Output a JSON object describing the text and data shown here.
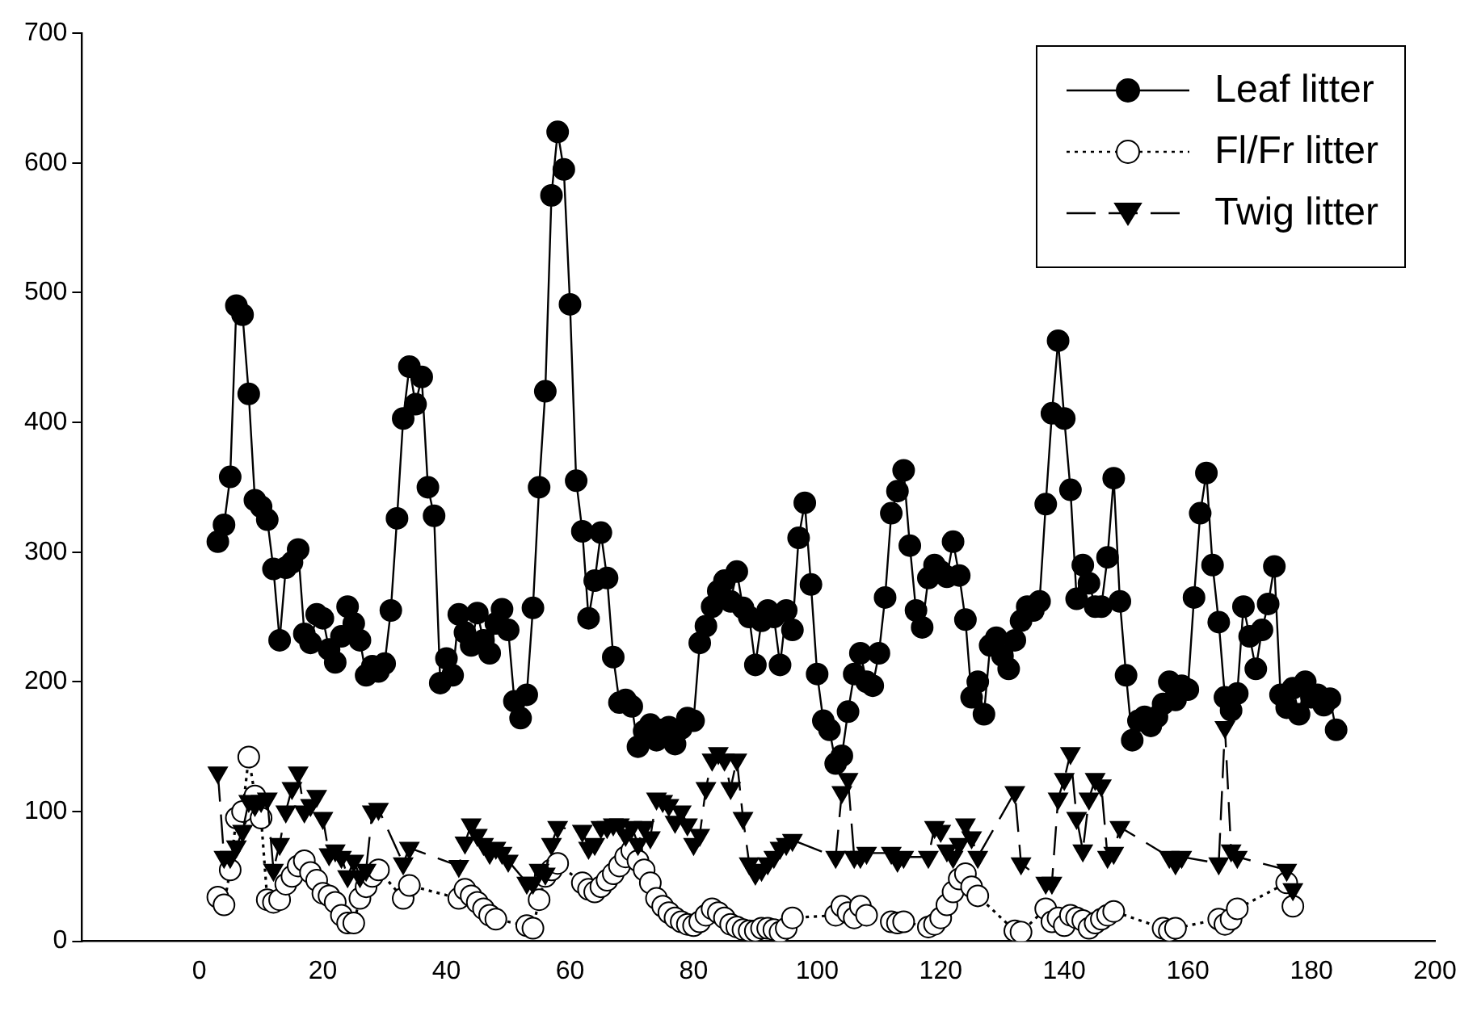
{
  "chart_data": {
    "type": "line",
    "xlim": [
      -19,
      200
    ],
    "xticks": [
      0,
      20,
      40,
      60,
      80,
      100,
      120,
      140,
      160,
      180,
      200
    ],
    "ylim": [
      0,
      700
    ],
    "yticks": [
      0,
      100,
      200,
      300,
      400,
      500,
      600,
      700
    ],
    "grid": false,
    "legend": "top right",
    "series": [
      {
        "name": "Leaf litter",
        "color": "#000000",
        "marker": "circle",
        "line_style": "solid",
        "x": [
          3,
          4,
          5,
          6,
          7,
          8,
          9,
          10,
          11,
          12,
          13,
          14,
          15,
          16,
          17,
          18,
          19,
          20,
          21,
          22,
          23,
          24,
          25,
          26,
          27,
          28,
          29,
          30,
          31,
          32,
          33,
          34,
          35,
          36,
          37,
          38,
          39,
          40,
          41,
          42,
          43,
          44,
          45,
          46,
          47,
          48,
          49,
          50,
          51,
          52,
          53,
          54,
          55,
          56,
          57,
          58,
          59,
          60,
          61,
          62,
          63,
          64,
          65,
          66,
          67,
          68,
          69,
          70,
          71,
          72,
          73,
          74,
          75,
          76,
          77,
          78,
          79,
          80,
          81,
          82,
          83,
          84,
          85,
          86,
          87,
          88,
          89,
          90,
          91,
          92,
          93,
          94,
          95,
          96,
          97,
          98,
          99,
          100,
          101,
          102,
          103,
          104,
          105,
          106,
          107,
          108,
          109,
          110,
          111,
          112,
          113,
          114,
          115,
          116,
          117,
          118,
          119,
          120,
          121,
          122,
          123,
          124,
          125,
          126,
          127,
          128,
          129,
          130,
          131,
          132,
          133,
          134,
          135,
          136,
          137,
          138,
          139,
          140,
          141,
          142,
          143,
          144,
          145,
          146,
          147,
          148,
          149,
          150,
          151,
          152,
          153,
          154,
          155,
          156,
          157,
          158,
          159,
          160,
          161,
          162,
          163,
          164,
          165,
          166,
          167,
          168,
          169,
          170,
          171,
          172,
          173,
          174,
          175,
          176,
          177,
          178,
          179,
          180,
          181,
          182,
          183,
          184
        ],
        "values": [
          308,
          321,
          358,
          490,
          483,
          422,
          340,
          335,
          325,
          287,
          232,
          288,
          292,
          302,
          237,
          230,
          252,
          249,
          225,
          215,
          235,
          258,
          245,
          232,
          205,
          212,
          208,
          214,
          255,
          326,
          403,
          443,
          414,
          435,
          350,
          328,
          199,
          218,
          205,
          252,
          238,
          228,
          253,
          232,
          222,
          245,
          256,
          240,
          185,
          172,
          190,
          257,
          350,
          424,
          575,
          624,
          595,
          491,
          355,
          316,
          249,
          278,
          315,
          280,
          219,
          184,
          186,
          181,
          150,
          162,
          167,
          155,
          163,
          165,
          152,
          164,
          172,
          170,
          230,
          243,
          258,
          270,
          278,
          262,
          285,
          257,
          250,
          213,
          247,
          255,
          250,
          213,
          255,
          240,
          311,
          338,
          275,
          206,
          170,
          163,
          137,
          143,
          177,
          206,
          222,
          200,
          197,
          222,
          265,
          330,
          347,
          363,
          305,
          255,
          242,
          280,
          290,
          285,
          281,
          308,
          282,
          248,
          188,
          200,
          175,
          228,
          234,
          220,
          210,
          232,
          247,
          258,
          255,
          262,
          337,
          407,
          463,
          403,
          348,
          264,
          290,
          276,
          258,
          258,
          296,
          357,
          262,
          205,
          155,
          170,
          173,
          166,
          173,
          183,
          200,
          186,
          197,
          194,
          265,
          330,
          361,
          290,
          246,
          188,
          178,
          191,
          258,
          235,
          210,
          240,
          260,
          289,
          190,
          180,
          195,
          175,
          200,
          188,
          190,
          182,
          187,
          163
        ]
      },
      {
        "name": "Fl/Fr litter",
        "color": "#000000",
        "colors": [
          "#ffffff",
          "#ffffff",
          "#ffffff",
          "#ffffff",
          "#ffffff",
          "#ffffff",
          "#ffffff",
          "#ffffff",
          "#ffffff",
          "#ffffff",
          "#ffffff",
          "#ffffff",
          "#ffffff",
          "#ffffff",
          "#ffffff",
          "#ffffff",
          "#ffffff",
          "#ffffff",
          "#ffffff",
          "#ffffff",
          "#ffffff",
          "#ffffff",
          "#ffffff",
          "#ffffff",
          "#ffffff",
          "#ffffff",
          "#ffffff",
          "#ffffff",
          "#ffffff",
          "#ffffff",
          "#ffffff",
          "#ffffff",
          "#ffffff",
          "#ffffff",
          "#ffffff",
          "#ffffff",
          "#ffffff",
          "#ffffff",
          "#ffffff",
          "#ffffff",
          "#ffffff",
          "#ffffff",
          "#ffffff",
          "#ffffff",
          "#ffffff",
          "#ffffff",
          "#ffffff",
          "#ffffff",
          "#ffffff",
          "#ffffff",
          "#ffffff",
          "#ffffff",
          "#ffffff",
          "#ffffff",
          "#ffffff",
          "#ffffff",
          "#ffffff",
          "#ffffff",
          "#ffffff",
          "#ffffff",
          "#ffffff",
          "#ffffff",
          "#ffffff",
          "#ffffff",
          "#ffffff",
          "#ffffff",
          "#ffffff",
          "#ffffff",
          "#ffffff",
          "#ffffff",
          "#ffffff",
          "#ffffff",
          "#ffffff",
          "#ffffff",
          "#ffffff",
          "#ffffff",
          "#ffffff",
          "#ffffff",
          "#ffffff",
          "#ffffff",
          "#ffffff",
          "#ffffff",
          "#ffffff",
          "#ffffff",
          "#ffffff",
          "#ffffff",
          "#ffffff",
          "#ffffff",
          "#ffffff",
          "#ffffff",
          "#ffffff",
          "#ffffff",
          "#ffffff",
          "#ffffff",
          "#ffffff",
          "#ffffff",
          "#ffffff",
          "#ffffff",
          "#ffffff",
          "#ffffff",
          "#ffffff",
          "#ffffff",
          "#ffffff",
          "#ffffff",
          "#ffffff",
          "#ffffff",
          "#ffffff",
          "#ffffff",
          "#ffffff",
          "#ffffff",
          "#ffffff",
          "#ffffff",
          "#ffffff",
          "#ffffff",
          "#ffffff",
          "#ffffff",
          "#ffffff",
          "#ffffff"
        ],
        "marker": "circle",
        "line_style": "dotted",
        "x": [
          3,
          4,
          5,
          6,
          7,
          8,
          9,
          10,
          11,
          12,
          13,
          14,
          15,
          16,
          17,
          18,
          19,
          20,
          21,
          22,
          23,
          24,
          25,
          26,
          27,
          28,
          29,
          33,
          34,
          42,
          43,
          44,
          45,
          46,
          47,
          48,
          53,
          54,
          55,
          56,
          57,
          58,
          62,
          63,
          64,
          65,
          66,
          67,
          68,
          69,
          70,
          71,
          72,
          73,
          74,
          75,
          76,
          77,
          78,
          79,
          80,
          81,
          82,
          83,
          84,
          85,
          86,
          87,
          88,
          89,
          90,
          91,
          92,
          93,
          94,
          95,
          96,
          103,
          104,
          105,
          106,
          107,
          108,
          112,
          113,
          114,
          118,
          119,
          120,
          121,
          122,
          123,
          124,
          125,
          126,
          132,
          133,
          137,
          138,
          139,
          140,
          141,
          142,
          143,
          144,
          145,
          146,
          147,
          148,
          156,
          157,
          158,
          165,
          166,
          167,
          168,
          176,
          177
        ],
        "values": [
          34,
          28,
          55,
          95,
          100,
          142,
          112,
          95,
          32,
          30,
          32,
          44,
          50,
          58,
          62,
          53,
          47,
          37,
          35,
          30,
          20,
          14,
          14,
          33,
          42,
          50,
          55,
          33,
          43,
          33,
          40,
          35,
          30,
          25,
          20,
          17,
          12,
          10,
          32,
          50,
          55,
          60,
          45,
          40,
          38,
          42,
          47,
          52,
          58,
          65,
          70,
          62,
          55,
          45,
          33,
          27,
          22,
          18,
          15,
          13,
          12,
          15,
          20,
          25,
          22,
          18,
          13,
          11,
          9,
          8,
          8,
          10,
          10,
          9,
          7,
          10,
          18,
          20,
          27,
          22,
          18,
          27,
          20,
          15,
          14,
          15,
          11,
          13,
          18,
          28,
          38,
          48,
          52,
          42,
          35,
          8,
          7,
          25,
          15,
          18,
          12,
          20,
          18,
          16,
          10,
          14,
          17,
          20,
          23,
          10,
          8,
          10,
          17,
          13,
          17,
          25,
          45,
          27
        ]
      },
      {
        "name": "Twig litter",
        "color": "#000000",
        "marker": "triangle",
        "line_style": "dashed",
        "x": [
          3,
          4,
          5,
          6,
          7,
          8,
          9,
          10,
          11,
          12,
          13,
          14,
          15,
          16,
          17,
          18,
          19,
          20,
          21,
          22,
          23,
          24,
          25,
          26,
          27,
          28,
          29,
          33,
          34,
          42,
          43,
          44,
          45,
          46,
          47,
          48,
          49,
          50,
          53,
          54,
          55,
          56,
          57,
          58,
          62,
          63,
          64,
          65,
          66,
          67,
          68,
          69,
          70,
          71,
          72,
          73,
          74,
          75,
          76,
          77,
          78,
          79,
          80,
          81,
          82,
          83,
          84,
          85,
          86,
          87,
          88,
          89,
          90,
          91,
          92,
          93,
          94,
          95,
          96,
          103,
          104,
          105,
          106,
          107,
          108,
          112,
          113,
          114,
          118,
          119,
          120,
          121,
          122,
          123,
          124,
          125,
          126,
          132,
          133,
          137,
          138,
          139,
          140,
          141,
          142,
          143,
          144,
          145,
          146,
          147,
          148,
          149,
          157,
          158,
          159,
          165,
          166,
          167,
          168,
          176,
          177
        ],
        "values": [
          130,
          65,
          65,
          73,
          85,
          108,
          105,
          108,
          110,
          55,
          75,
          100,
          118,
          130,
          100,
          105,
          112,
          95,
          67,
          70,
          65,
          50,
          62,
          50,
          55,
          100,
          102,
          60,
          72,
          58,
          76,
          90,
          82,
          75,
          68,
          72,
          68,
          62,
          45,
          45,
          55,
          52,
          75,
          88,
          85,
          72,
          75,
          88,
          88,
          90,
          90,
          82,
          88,
          75,
          88,
          80,
          110,
          108,
          105,
          92,
          100,
          90,
          75,
          82,
          118,
          140,
          145,
          140,
          118,
          140,
          95,
          60,
          52,
          55,
          60,
          65,
          72,
          75,
          78,
          65,
          115,
          125,
          65,
          65,
          68,
          68,
          62,
          65,
          65,
          88,
          85,
          70,
          65,
          75,
          90,
          80,
          65,
          115,
          60,
          45,
          45,
          110,
          125,
          145,
          95,
          70,
          110,
          125,
          120,
          65,
          68,
          88,
          65,
          60,
          65,
          60,
          165,
          70,
          65,
          55,
          40
        ]
      }
    ]
  }
}
